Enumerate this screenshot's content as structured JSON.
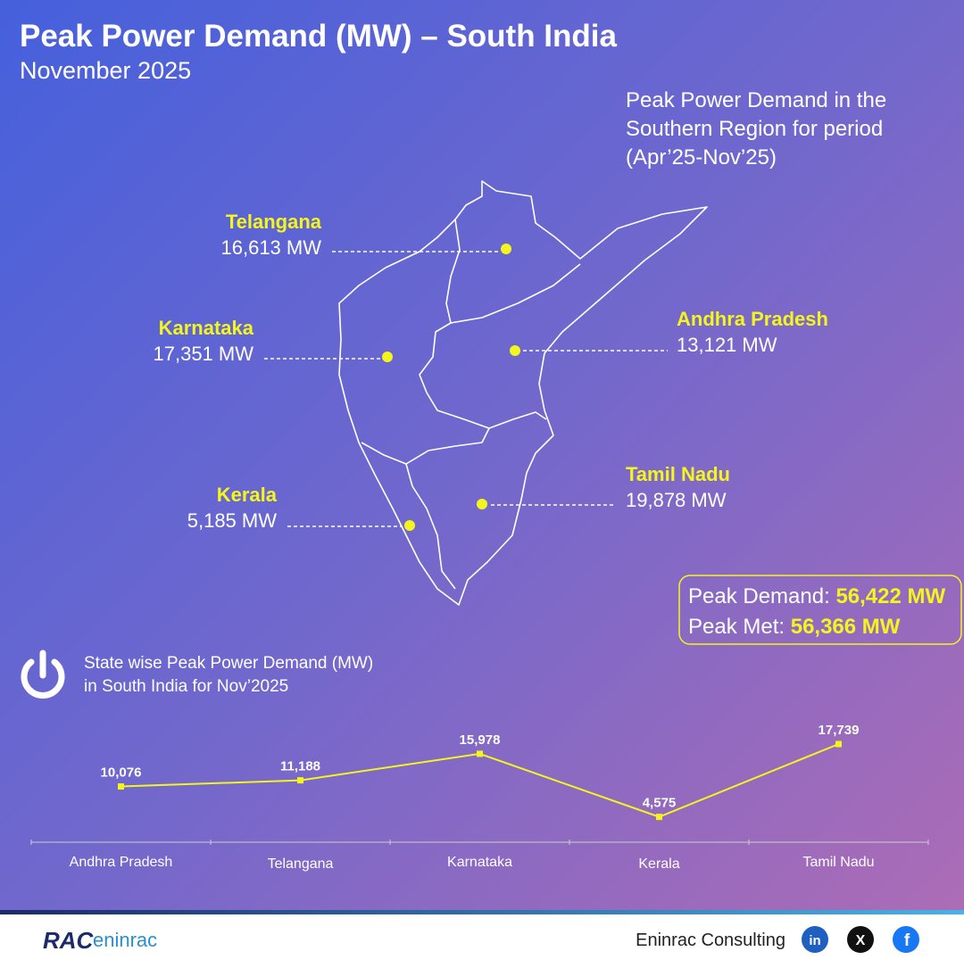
{
  "header": {
    "title": "Peak Power Demand (MW) – South India",
    "subtitle": "November 2025"
  },
  "map": {
    "title": [
      "Peak Power Demand in the",
      "Southern Region for period",
      "(Apr’25-Nov’25)"
    ],
    "states": [
      {
        "name": "Telangana",
        "value": "16,613 MW"
      },
      {
        "name": "Karnataka",
        "value": "17,351 MW"
      },
      {
        "name": "Andhra Pradesh",
        "value": "13,121 MW"
      },
      {
        "name": "Kerala",
        "value": "5,185 MW"
      },
      {
        "name": "Tamil Nadu",
        "value": "19,878 MW"
      }
    ]
  },
  "summary": {
    "demand_label": "Peak Demand:",
    "demand_value": "56,422 MW",
    "met_label": "Peak Met:",
    "met_value": "56,366 MW"
  },
  "chart_data": {
    "type": "line",
    "title": [
      "State wise Peak Power Demand (MW)",
      "in South India for Nov’2025"
    ],
    "categories": [
      "Andhra Pradesh",
      "Telangana",
      "Karnataka",
      "Kerala",
      "Tamil Nadu"
    ],
    "values": [
      10076,
      11188,
      15978,
      4575,
      17739
    ],
    "value_labels": [
      "10,076",
      "11,188",
      "15,978",
      "4,575",
      "17,739"
    ],
    "color": "#f5f51e"
  },
  "footer": {
    "brand_left": "RAC",
    "brand_right": "eninrac",
    "company": "Eninrac Consulting"
  }
}
